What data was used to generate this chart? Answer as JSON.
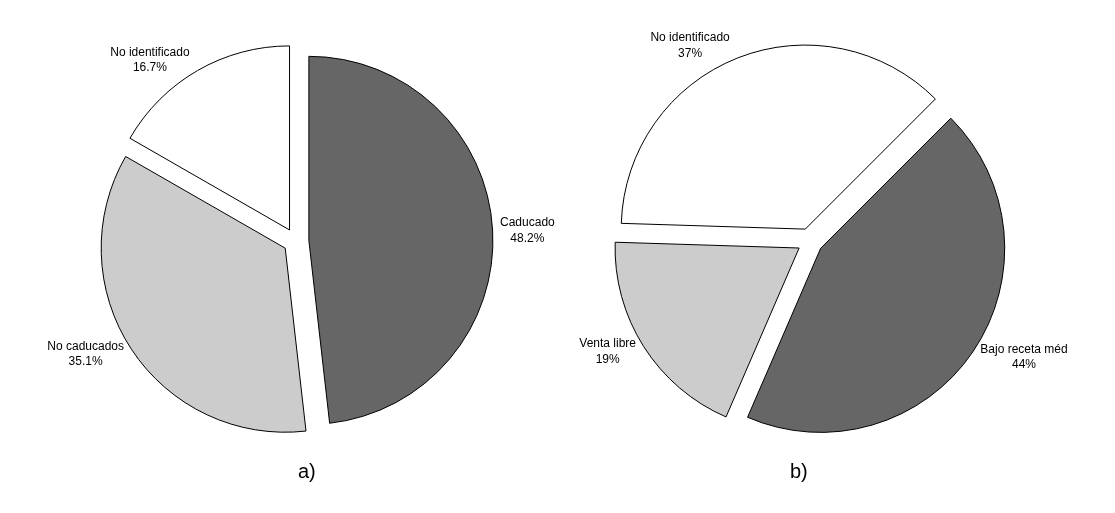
{
  "chart_data": [
    {
      "type": "pie",
      "annotations": [
        "a)"
      ],
      "categories": [
        "Caducado",
        "No caducados",
        "No identificado"
      ],
      "values": [
        48.2,
        35.1,
        16.7
      ],
      "value_labels": [
        "48.2%",
        "35.1%",
        "16.7%"
      ],
      "colors": [
        "#666666",
        "#cccccc",
        "#ffffff"
      ]
    },
    {
      "type": "pie",
      "annotations": [
        "b)"
      ],
      "categories": [
        "Bajo receta méd",
        "Venta libre",
        "No identificado"
      ],
      "values": [
        44,
        19,
        37
      ],
      "value_labels": [
        "44%",
        "19%",
        "37%"
      ],
      "colors": [
        "#666666",
        "#cccccc",
        "#ffffff"
      ]
    }
  ]
}
